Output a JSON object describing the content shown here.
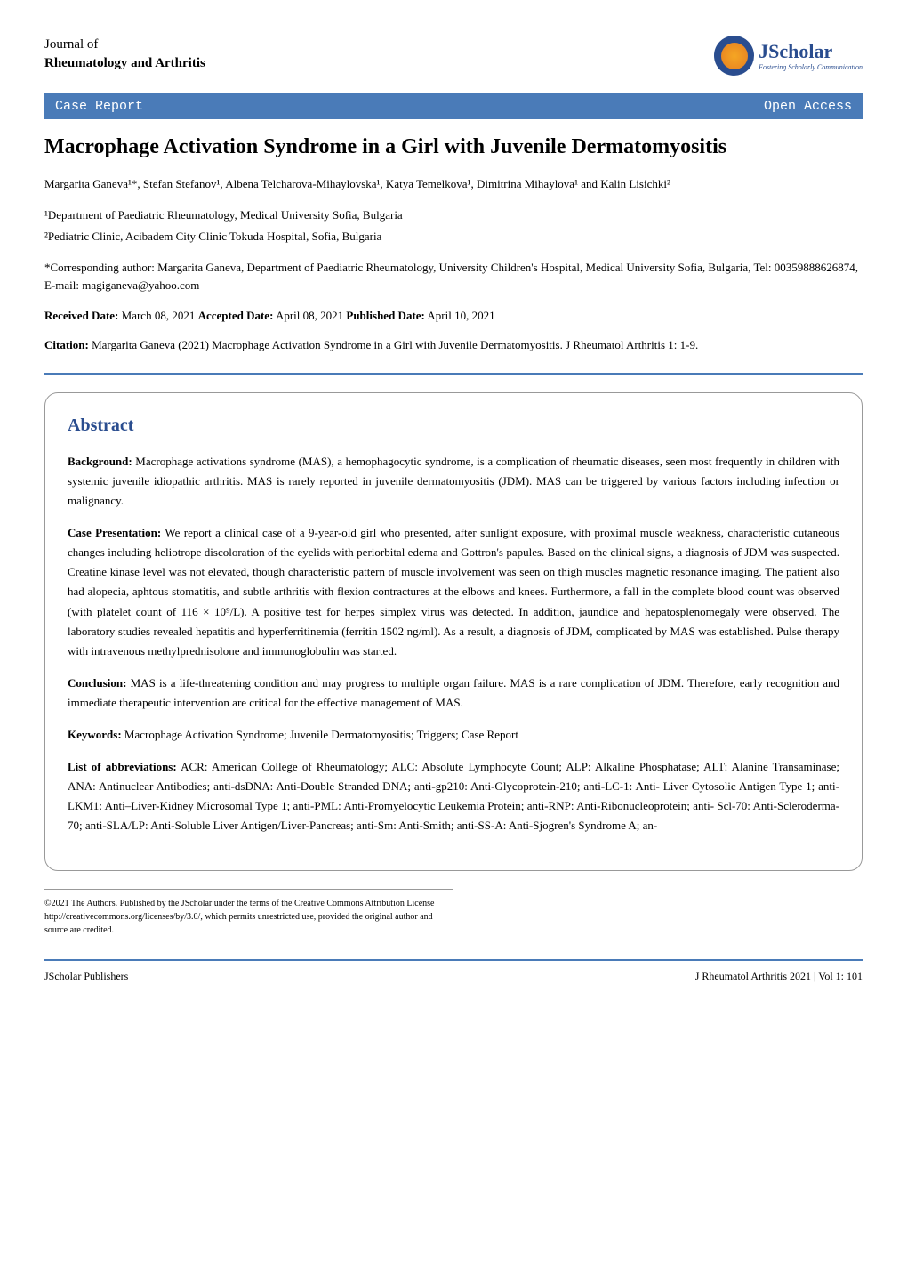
{
  "journal": {
    "name": "Journal of",
    "subtitle": "Rheumatology and Arthritis"
  },
  "logo": {
    "text": "JScholar",
    "tagline": "Fostering Scholarly Communication"
  },
  "banner": {
    "left": "Case Report",
    "right": "Open Access"
  },
  "title": "Macrophage Activation Syndrome in a Girl with Juvenile Dermatomyositis",
  "authors": "Margarita Ganeva¹*, Stefan Stefanov¹, Albena Telcharova-Mihaylovska¹, Katya Temelkova¹, Dimitrina Mihaylova¹ and Kalin Lisichki²",
  "affiliations": {
    "line1": "¹Department of Paediatric Rheumatology, Medical University Sofia, Bulgaria",
    "line2": "²Pediatric Clinic, Acibadem City Clinic Tokuda Hospital, Sofia, Bulgaria"
  },
  "corresponding": {
    "label": "*Corresponding author:",
    "text": " Margarita Ganeva, Department of Paediatric Rheumatology, University Children's Hospital, Medical University Sofia, Bulgaria, Tel: 00359888626874, E-mail: magiganeva@yahoo.com"
  },
  "dates": {
    "received_label": "Received Date:",
    "received": " March 08, 2021 ",
    "accepted_label": "Accepted Date:",
    "accepted": " April 08, 2021 ",
    "published_label": "Published Date:",
    "published": " April 10, 2021"
  },
  "citation": {
    "label": "Citation:",
    "text": " Margarita Ganeva (2021) Macrophage Activation Syndrome in a Girl with Juvenile Dermatomyositis. J Rheumatol Arthritis 1: 1-9."
  },
  "abstract": {
    "title": "Abstract",
    "background_label": "Background:",
    "background": " Macrophage activations syndrome (MAS), a hemophagocytic syndrome, is a complication of rheumatic diseases, seen most frequently in children with systemic juvenile idiopathic arthritis. MAS is rarely reported in juvenile dermatomyositis (JDM). MAS can be triggered by various factors including infection or malignancy.",
    "case_label": "Case Presentation:",
    "case": " We report a clinical case of a 9-year-old girl who presented, after sunlight exposure, with proximal muscle weakness, characteristic cutaneous changes including heliotrope discoloration of the eyelids with periorbital edema and Gottron's papules. Based on the clinical signs, a diagnosis of JDM was suspected. Creatine kinase level was not elevated, though characteristic pattern of muscle involvement was seen on thigh muscles magnetic resonance imaging. The patient also had alopecia, aphtous stomatitis, and subtle arthritis with flexion contractures at the elbows and knees. Furthermore, a fall in the complete blood count was observed (with platelet count of 116 × 10⁹/L). A positive test for herpes simplex virus was detected. In addition, jaundice and hepatosplenomegaly were observed. The laboratory studies revealed hepatitis and hyperferritinemia (ferritin 1502 ng/ml). As a result, a diagnosis of JDM, complicated by MAS was established. Pulse therapy with intravenous methylprednisolone and immunoglobulin was started.",
    "conclusion_label": "Conclusion:",
    "conclusion": " MAS is a life-threatening condition and may progress to multiple organ failure. MAS is a rare complication of JDM. Therefore, early recognition and immediate therapeutic intervention are critical for the effective management of MAS.",
    "keywords_label": "Keywords:",
    "keywords": " Macrophage Activation Syndrome; Juvenile Dermatomyositis; Triggers; Case Report",
    "abbreviations_label": "List of abbreviations:",
    "abbreviations": " ACR: American College of Rheumatology; ALC: Absolute Lymphocyte Count; ALP: Alkaline Phosphatase; ALT: Alanine Transaminase; ANA: Antinuclear Antibodies; anti-dsDNA: Anti-Double Stranded DNA; anti-gp210: Anti-Glycoprotein-210; anti-LC-1: Anti- Liver Cytosolic Antigen Type 1; anti-LKM1: Anti–Liver-Kidney Microsomal Type 1; anti-PML: Anti-Promyelocytic Leukemia Protein; anti-RNP: Anti-Ribonucleoprotein; anti- Scl-70: Anti-Scleroderma-70; anti-SLA/LP: Anti-Soluble Liver Antigen/Liver-Pancreas; anti-Sm: Anti-Smith; anti-SS-A: Anti-Sjogren's Syndrome A; an-"
  },
  "copyright": "©2021 The Authors. Published by the JScholar under the terms of the Creative Commons Attribution License http://creativecommons.org/licenses/by/3.0/, which permits unrestricted use, provided the original author and source are credited.",
  "footer": {
    "left": "JScholar Publishers",
    "right": "J Rheumatol Arthritis 2021 | Vol 1: 101"
  },
  "colors": {
    "banner_bg": "#4a7bb8",
    "banner_text": "#ffffff",
    "logo_blue": "#2a4d8f",
    "abstract_title": "#2a4d8f",
    "divider": "#4a7bb8",
    "box_border": "#999999",
    "text": "#000000"
  },
  "typography": {
    "body_font": "Georgia, Times New Roman, serif",
    "banner_font": "Courier New, monospace",
    "title_size": 24,
    "abstract_title_size": 20,
    "body_size": 13,
    "copyright_size": 10,
    "footer_size": 12
  }
}
